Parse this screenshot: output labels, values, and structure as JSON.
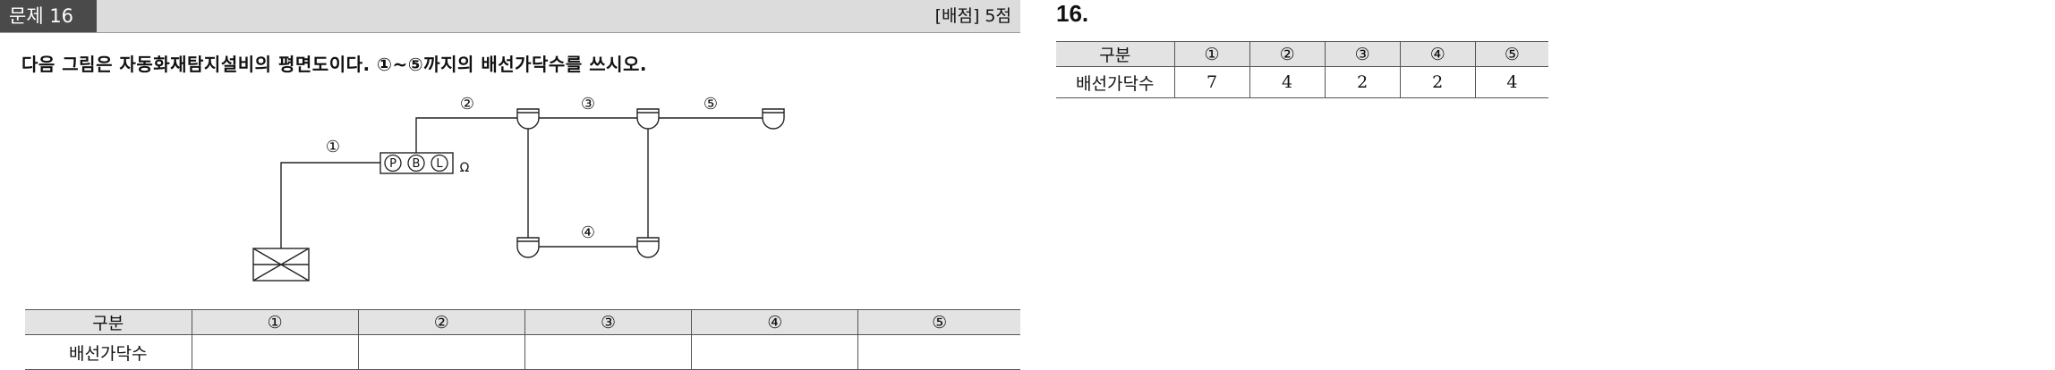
{
  "question": {
    "label": "문제 16",
    "score": "[배점] 5점",
    "text": "다음 그림은 자동화재탐지설비의 평면도이다. ①~⑤까지의 배선가닥수를 쓰시오."
  },
  "diagram": {
    "segment_labels": [
      "①",
      "②",
      "③",
      "④",
      "⑤"
    ],
    "panel_letters": [
      "P",
      "B",
      "L"
    ],
    "omega": "Ω"
  },
  "question_table": {
    "header": [
      "구분",
      "①",
      "②",
      "③",
      "④",
      "⑤"
    ],
    "row_label": "배선가닥수",
    "values": [
      "",
      "",
      "",
      "",
      ""
    ]
  },
  "answer": {
    "number": "16.",
    "header": [
      "구분",
      "①",
      "②",
      "③",
      "④",
      "⑤"
    ],
    "row_label": "배선가닥수",
    "values": [
      "7",
      "4",
      "2",
      "2",
      "4"
    ]
  }
}
